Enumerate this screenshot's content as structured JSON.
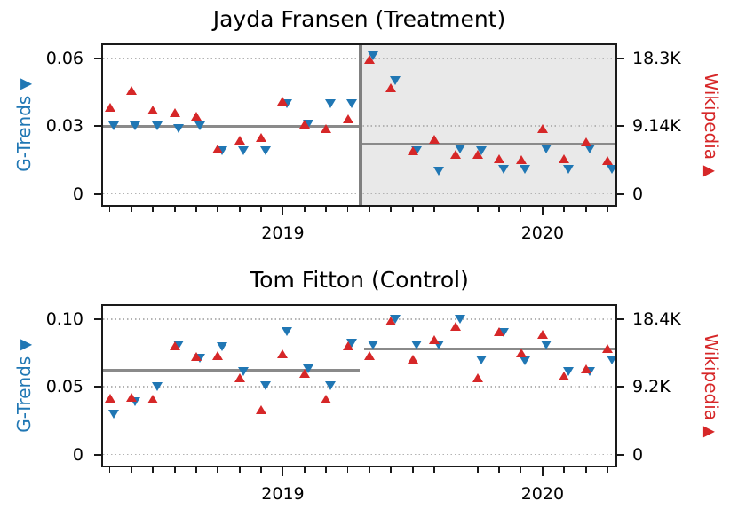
{
  "colors": {
    "gtrends_blue": "#2077b4",
    "wikipedia_red": "#d62728",
    "mean_line_gray": "#8a8a8a",
    "treatment_line_gray": "#808080",
    "treatment_shade": "#e9e9e9",
    "gridline_gray": "#b3b3b3",
    "spine_black": "#1a1a1a"
  },
  "chart_data": [
    {
      "type": "scatter",
      "panel": "treatment",
      "title": "Jayda Fransen (Treatment)",
      "x_months": [
        "2018-05",
        "2018-06",
        "2018-07",
        "2018-08",
        "2018-09",
        "2018-10",
        "2018-11",
        "2018-12",
        "2019-01",
        "2019-02",
        "2019-03",
        "2019-04",
        "2019-05",
        "2019-06",
        "2019-07",
        "2019-08",
        "2019-09",
        "2019-10",
        "2019-11",
        "2019-12",
        "2020-01",
        "2020-02",
        "2020-03",
        "2020-04"
      ],
      "x_axis": {
        "minor_ticks": "monthly",
        "major_ticks": [
          {
            "month_index": 8,
            "label": "2019"
          },
          {
            "month_index": 20,
            "label": "2020"
          }
        ]
      },
      "left_axis": {
        "label": "G-Trends",
        "label_marker": "▼",
        "color": "#2077b4",
        "top_value": 0.06,
        "ticks": [
          {
            "value": 0,
            "label": "0"
          },
          {
            "value": 0.03,
            "label": "0.03"
          },
          {
            "value": 0.06,
            "label": "0.06"
          }
        ]
      },
      "right_axis": {
        "label": "Wikipedia",
        "label_marker": "▲",
        "color": "#d62728",
        "top_value": 18.3,
        "ticks": [
          {
            "value": 0,
            "label": "0"
          },
          {
            "value": 9.14,
            "label": "9.14K"
          },
          {
            "value": 18.3,
            "label": "18.3K"
          }
        ]
      },
      "series": [
        {
          "name": "G-Trends",
          "axis": "left",
          "marker": "triangle-down",
          "color": "#2077b4",
          "values": [
            0.03,
            0.03,
            0.03,
            0.029,
            0.03,
            0.019,
            0.019,
            0.019,
            0.04,
            0.031,
            0.04,
            0.04,
            0.061,
            0.05,
            0.019,
            0.01,
            0.02,
            0.019,
            0.011,
            0.011,
            0.02,
            0.011,
            0.02,
            0.011
          ]
        },
        {
          "name": "Wikipedia",
          "axis": "right",
          "marker": "triangle-up",
          "color": "#d62728",
          "values": [
            11.7,
            14.0,
            11.4,
            11.0,
            10.5,
            6.1,
            7.3,
            7.6,
            12.6,
            9.4,
            8.8,
            10.2,
            18.2,
            14.3,
            5.8,
            7.4,
            5.4,
            5.3,
            4.7,
            4.6,
            8.8,
            4.8,
            7.0,
            4.5
          ]
        }
      ],
      "mean_lines": {
        "pre_period": 0.03,
        "post_period": 0.022
      },
      "treatment_boundary": {
        "between_months": [
          "2019-04",
          "2019-05"
        ],
        "vertical_line": true,
        "shaded_post_period": true
      }
    },
    {
      "type": "scatter",
      "panel": "control",
      "title": "Tom Fitton (Control)",
      "x_months": [
        "2018-05",
        "2018-06",
        "2018-07",
        "2018-08",
        "2018-09",
        "2018-10",
        "2018-11",
        "2018-12",
        "2019-01",
        "2019-02",
        "2019-03",
        "2019-04",
        "2019-05",
        "2019-06",
        "2019-07",
        "2019-08",
        "2019-09",
        "2019-10",
        "2019-11",
        "2019-12",
        "2020-01",
        "2020-02",
        "2020-03",
        "2020-04"
      ],
      "x_axis": {
        "minor_ticks": "monthly",
        "major_ticks": [
          {
            "month_index": 8,
            "label": "2019"
          },
          {
            "month_index": 20,
            "label": "2020"
          }
        ]
      },
      "left_axis": {
        "label": "G-Trends",
        "label_marker": "▼",
        "color": "#2077b4",
        "top_value": 0.1,
        "ticks": [
          {
            "value": 0,
            "label": "0"
          },
          {
            "value": 0.05,
            "label": "0.05"
          },
          {
            "value": 0.1,
            "label": "0.10"
          }
        ]
      },
      "right_axis": {
        "label": "Wikipedia",
        "label_marker": "▲",
        "color": "#d62728",
        "top_value": 18.4,
        "ticks": [
          {
            "value": 0,
            "label": "0"
          },
          {
            "value": 9.2,
            "label": "9.2K"
          },
          {
            "value": 18.4,
            "label": "18.4K"
          }
        ]
      },
      "series": [
        {
          "name": "G-Trends",
          "axis": "left",
          "marker": "triangle-down",
          "color": "#2077b4",
          "values": [
            0.03,
            0.039,
            0.05,
            0.081,
            0.071,
            0.08,
            0.061,
            0.051,
            0.091,
            0.063,
            0.051,
            0.082,
            0.081,
            0.1,
            0.081,
            0.081,
            0.1,
            0.07,
            0.09,
            0.069,
            0.081,
            0.061,
            0.061,
            0.07
          ]
        },
        {
          "name": "Wikipedia",
          "axis": "right",
          "marker": "triangle-up",
          "color": "#d62728",
          "values": [
            7.7,
            7.8,
            7.6,
            14.8,
            13.3,
            13.5,
            10.4,
            6.1,
            13.7,
            11.1,
            7.5,
            14.8,
            13.5,
            18.2,
            13.0,
            15.6,
            17.4,
            10.4,
            16.7,
            13.8,
            16.3,
            10.7,
            11.6,
            14.4
          ]
        }
      ],
      "mean_lines": {
        "pre_period": 0.062,
        "post_period": 0.078
      },
      "treatment_boundary": {
        "between_months": [
          "2019-04",
          "2019-05"
        ],
        "vertical_line": false,
        "shaded_post_period": false
      }
    }
  ]
}
